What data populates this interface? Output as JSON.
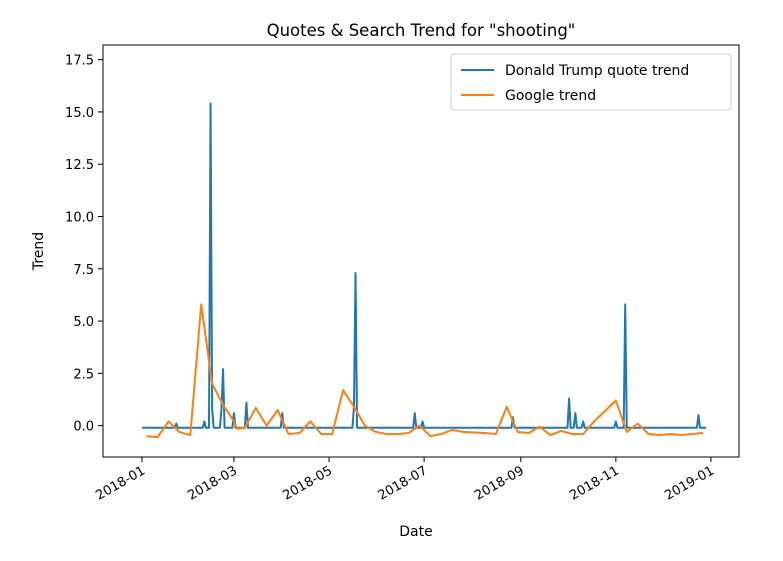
{
  "chart_data": {
    "type": "line",
    "title": "Quotes & Search Trend for \"shooting\"",
    "xlabel": "Date",
    "ylabel": "Trend",
    "xlim": [
      "2017-12-07",
      "2019-01-19"
    ],
    "ylim": [
      -1.5,
      18.2
    ],
    "xticks": [
      "2018-01",
      "2018-03",
      "2018-05",
      "2018-07",
      "2018-09",
      "2018-11",
      "2019-01"
    ],
    "yticks": [
      "0.0",
      "2.5",
      "5.0",
      "7.5",
      "10.0",
      "12.5",
      "15.0",
      "17.5"
    ],
    "grid": false,
    "legend_position": "top-right",
    "colors": {
      "trump": "#1f77b4",
      "google": "#ff7f0e"
    },
    "series": [
      {
        "name": "Donald Trump quote trend",
        "color": "#1f77b4",
        "points": [
          [
            "2018-01-01",
            -0.1
          ],
          [
            "2018-01-22",
            -0.1
          ],
          [
            "2018-01-23",
            0.1
          ],
          [
            "2018-01-24",
            -0.1
          ],
          [
            "2018-02-09",
            -0.1
          ],
          [
            "2018-02-10",
            0.2
          ],
          [
            "2018-02-11",
            -0.1
          ],
          [
            "2018-02-13",
            -0.1
          ],
          [
            "2018-02-14",
            15.4
          ],
          [
            "2018-02-15",
            0.8
          ],
          [
            "2018-02-16",
            -0.1
          ],
          [
            "2018-02-20",
            -0.1
          ],
          [
            "2018-02-21",
            0.8
          ],
          [
            "2018-02-22",
            2.7
          ],
          [
            "2018-02-23",
            -0.1
          ],
          [
            "2018-02-28",
            -0.1
          ],
          [
            "2018-03-01",
            0.6
          ],
          [
            "2018-03-02",
            -0.1
          ],
          [
            "2018-03-08",
            -0.1
          ],
          [
            "2018-03-09",
            1.1
          ],
          [
            "2018-03-10",
            -0.1
          ],
          [
            "2018-03-31",
            -0.1
          ],
          [
            "2018-04-01",
            0.6
          ],
          [
            "2018-04-02",
            -0.1
          ],
          [
            "2018-05-16",
            -0.1
          ],
          [
            "2018-05-17",
            0.9
          ],
          [
            "2018-05-18",
            7.3
          ],
          [
            "2018-05-19",
            -0.1
          ],
          [
            "2018-06-24",
            -0.1
          ],
          [
            "2018-06-25",
            0.6
          ],
          [
            "2018-06-26",
            -0.1
          ],
          [
            "2018-06-29",
            -0.1
          ],
          [
            "2018-06-30",
            0.2
          ],
          [
            "2018-07-01",
            -0.1
          ],
          [
            "2018-08-26",
            -0.1
          ],
          [
            "2018-08-27",
            0.4
          ],
          [
            "2018-08-28",
            -0.1
          ],
          [
            "2018-10-01",
            -0.1
          ],
          [
            "2018-10-02",
            1.3
          ],
          [
            "2018-10-03",
            -0.1
          ],
          [
            "2018-10-05",
            -0.1
          ],
          [
            "2018-10-06",
            0.6
          ],
          [
            "2018-10-07",
            -0.1
          ],
          [
            "2018-10-10",
            -0.1
          ],
          [
            "2018-10-11",
            0.2
          ],
          [
            "2018-10-12",
            -0.1
          ],
          [
            "2018-10-31",
            -0.1
          ],
          [
            "2018-11-01",
            0.2
          ],
          [
            "2018-11-02",
            -0.1
          ],
          [
            "2018-11-06",
            -0.1
          ],
          [
            "2018-11-07",
            5.8
          ],
          [
            "2018-11-08",
            -0.1
          ],
          [
            "2018-12-23",
            -0.1
          ],
          [
            "2018-12-24",
            0.5
          ],
          [
            "2018-12-25",
            -0.1
          ],
          [
            "2018-12-29",
            -0.1
          ]
        ]
      },
      {
        "name": "Google trend",
        "color": "#ff7f0e",
        "points": [
          [
            "2018-01-04",
            -0.5
          ],
          [
            "2018-01-11",
            -0.55
          ],
          [
            "2018-01-18",
            0.2
          ],
          [
            "2018-01-25",
            -0.3
          ],
          [
            "2018-02-01",
            -0.45
          ],
          [
            "2018-02-08",
            5.8
          ],
          [
            "2018-02-15",
            2.0
          ],
          [
            "2018-02-22",
            1.0
          ],
          [
            "2018-03-01",
            0.2
          ],
          [
            "2018-03-03",
            -0.15
          ],
          [
            "2018-03-08",
            -0.1
          ],
          [
            "2018-03-15",
            0.85
          ],
          [
            "2018-03-22",
            0.0
          ],
          [
            "2018-03-29",
            0.75
          ],
          [
            "2018-04-05",
            -0.4
          ],
          [
            "2018-04-12",
            -0.35
          ],
          [
            "2018-04-19",
            0.2
          ],
          [
            "2018-04-26",
            -0.4
          ],
          [
            "2018-05-03",
            -0.4
          ],
          [
            "2018-05-10",
            1.7
          ],
          [
            "2018-05-17",
            0.9
          ],
          [
            "2018-05-24",
            0.0
          ],
          [
            "2018-05-31",
            -0.3
          ],
          [
            "2018-06-07",
            -0.4
          ],
          [
            "2018-06-14",
            -0.4
          ],
          [
            "2018-06-21",
            -0.35
          ],
          [
            "2018-06-28",
            0.0
          ],
          [
            "2018-07-05",
            -0.5
          ],
          [
            "2018-07-12",
            -0.4
          ],
          [
            "2018-07-19",
            -0.2
          ],
          [
            "2018-07-26",
            -0.3
          ],
          [
            "2018-08-09",
            -0.35
          ],
          [
            "2018-08-16",
            -0.4
          ],
          [
            "2018-08-23",
            0.9
          ],
          [
            "2018-08-30",
            -0.3
          ],
          [
            "2018-09-06",
            -0.35
          ],
          [
            "2018-09-13",
            -0.05
          ],
          [
            "2018-09-20",
            -0.45
          ],
          [
            "2018-09-27",
            -0.25
          ],
          [
            "2018-10-04",
            -0.4
          ],
          [
            "2018-10-11",
            -0.4
          ],
          [
            "2018-10-18",
            0.2
          ],
          [
            "2018-11-01",
            1.2
          ],
          [
            "2018-11-08",
            -0.3
          ],
          [
            "2018-11-15",
            0.1
          ],
          [
            "2018-11-22",
            -0.4
          ],
          [
            "2018-11-29",
            -0.45
          ],
          [
            "2018-12-06",
            -0.4
          ],
          [
            "2018-12-13",
            -0.45
          ],
          [
            "2018-12-20",
            -0.4
          ],
          [
            "2018-12-27",
            -0.35
          ]
        ]
      }
    ]
  }
}
